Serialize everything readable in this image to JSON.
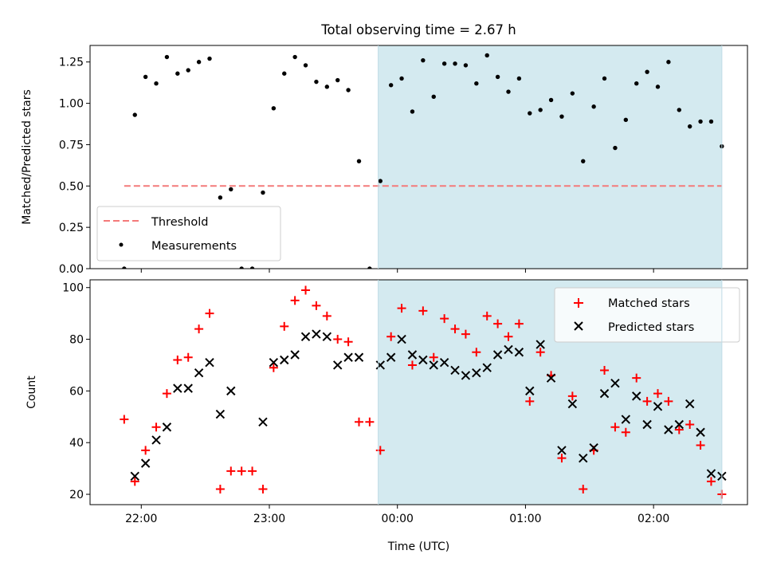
{
  "chart_data": [
    {
      "type": "scatter",
      "title": "Total observing time = 2.67 h",
      "ylabel": "Matched/Predicted stars",
      "xlabel": "",
      "ylim": [
        0,
        1.35
      ],
      "yticks": [
        "0.00",
        "0.25",
        "0.50",
        "0.75",
        "1.00",
        "1.25"
      ],
      "ytick_values": [
        0,
        0.25,
        0.5,
        0.75,
        1.0,
        1.25
      ],
      "xticks": [
        "22:00",
        "23:00",
        "00:00",
        "01:00",
        "02:00"
      ],
      "xtick_values": [
        "22:00",
        "23:00",
        "00:00",
        "01:00",
        "02:00"
      ],
      "xlim": [
        "21:36",
        "02:44"
      ],
      "shaded_span": [
        "23:51",
        "02:32"
      ],
      "shaded_color": "#d4eaf0",
      "legend": {
        "position": "lower-left",
        "entries": [
          "Threshold",
          "Measurements"
        ]
      },
      "threshold": {
        "name": "Threshold",
        "value": 0.5,
        "x_range": [
          "21:52",
          "02:32"
        ],
        "color": "#f47a7a",
        "style": "dashed"
      },
      "series": [
        {
          "name": "Measurements",
          "marker": "dot",
          "color": "#000000",
          "x": [
            "21:52",
            "21:57",
            "22:02",
            "22:07",
            "22:12",
            "22:17",
            "22:22",
            "22:27",
            "22:32",
            "22:37",
            "22:42",
            "22:47",
            "22:52",
            "22:57",
            "23:02",
            "23:07",
            "23:12",
            "23:17",
            "23:22",
            "23:27",
            "23:32",
            "23:37",
            "23:42",
            "23:47",
            "23:52",
            "23:57",
            "24:02",
            "24:07",
            "24:12",
            "24:17",
            "24:22",
            "24:27",
            "24:32",
            "24:37",
            "24:42",
            "24:47",
            "24:52",
            "24:57",
            "25:02",
            "25:07",
            "25:12",
            "25:17",
            "25:22",
            "25:27",
            "25:32",
            "25:37",
            "25:42",
            "25:47",
            "25:52",
            "25:57",
            "26:02",
            "26:07",
            "26:12",
            "26:17",
            "26:22",
            "26:27",
            "26:32"
          ],
          "y": [
            0.0,
            0.93,
            1.16,
            1.12,
            1.28,
            1.18,
            1.2,
            1.25,
            1.27,
            0.43,
            0.48,
            0.0,
            0.0,
            0.46,
            0.97,
            1.18,
            1.28,
            1.23,
            1.13,
            1.1,
            1.14,
            1.08,
            0.65,
            0.0,
            0.53,
            1.11,
            1.15,
            0.95,
            1.26,
            1.04,
            1.24,
            1.24,
            1.23,
            1.12,
            1.29,
            1.16,
            1.07,
            1.15,
            0.94,
            0.96,
            1.02,
            0.92,
            1.06,
            0.65,
            0.98,
            1.15,
            0.73,
            0.9,
            1.12,
            1.19,
            1.1,
            1.25,
            0.96,
            0.86,
            0.89,
            0.89,
            0.74
          ]
        }
      ]
    },
    {
      "type": "scatter",
      "title": "",
      "ylabel": "Count",
      "xlabel": "Time (UTC)",
      "ylim": [
        16,
        103
      ],
      "yticks": [
        "20",
        "40",
        "60",
        "80",
        "100"
      ],
      "ytick_values": [
        20,
        40,
        60,
        80,
        100
      ],
      "xticks": [
        "22:00",
        "23:00",
        "00:00",
        "01:00",
        "02:00"
      ],
      "xtick_values": [
        "22:00",
        "23:00",
        "00:00",
        "01:00",
        "02:00"
      ],
      "xlim": [
        "21:36",
        "02:44"
      ],
      "shaded_span": [
        "23:51",
        "02:32"
      ],
      "shaded_color": "#d4eaf0",
      "legend": {
        "position": "upper-right",
        "entries": [
          "Matched stars",
          "Predicted stars"
        ]
      },
      "series": [
        {
          "name": "Matched stars",
          "marker": "plus",
          "color": "#ff0000",
          "x": [
            "21:52",
            "21:57",
            "22:02",
            "22:07",
            "22:12",
            "22:17",
            "22:22",
            "22:27",
            "22:32",
            "22:37",
            "22:42",
            "22:47",
            "22:52",
            "22:57",
            "23:02",
            "23:07",
            "23:12",
            "23:17",
            "23:22",
            "23:27",
            "23:32",
            "23:37",
            "23:42",
            "23:47",
            "23:52",
            "23:57",
            "24:02",
            "24:07",
            "24:12",
            "24:17",
            "24:22",
            "24:27",
            "24:32",
            "24:37",
            "24:42",
            "24:47",
            "24:52",
            "24:57",
            "25:02",
            "25:07",
            "25:12",
            "25:17",
            "25:22",
            "25:27",
            "25:32",
            "25:37",
            "25:42",
            "25:47",
            "25:52",
            "25:57",
            "26:02",
            "26:07",
            "26:12",
            "26:17",
            "26:22",
            "26:27",
            "26:32"
          ],
          "y": [
            49,
            25,
            37,
            46,
            59,
            72,
            73,
            84,
            90,
            22,
            29,
            29,
            29,
            22,
            69,
            85,
            95,
            99,
            93,
            89,
            80,
            79,
            48,
            48,
            37,
            81,
            92,
            70,
            91,
            73,
            88,
            84,
            82,
            75,
            89,
            86,
            81,
            86,
            56,
            75,
            66,
            34,
            58,
            22,
            37,
            68,
            46,
            44,
            65,
            56,
            59,
            56,
            45,
            47,
            39,
            25,
            20
          ]
        },
        {
          "name": "Predicted stars",
          "marker": "x",
          "color": "#000000",
          "x": [
            "21:57",
            "22:02",
            "22:07",
            "22:12",
            "22:17",
            "22:22",
            "22:27",
            "22:32",
            "22:37",
            "22:42",
            "22:57",
            "23:02",
            "23:07",
            "23:12",
            "23:17",
            "23:22",
            "23:27",
            "23:32",
            "23:37",
            "23:42",
            "23:52",
            "23:57",
            "24:02",
            "24:07",
            "24:12",
            "24:17",
            "24:22",
            "24:27",
            "24:32",
            "24:37",
            "24:42",
            "24:47",
            "24:52",
            "24:57",
            "25:02",
            "25:07",
            "25:12",
            "25:17",
            "25:22",
            "25:27",
            "25:32",
            "25:37",
            "25:42",
            "25:47",
            "25:52",
            "25:57",
            "26:02",
            "26:07",
            "26:12",
            "26:17",
            "26:22",
            "26:27",
            "26:32"
          ],
          "y": [
            27,
            32,
            41,
            46,
            61,
            61,
            67,
            71,
            51,
            60,
            48,
            71,
            72,
            74,
            81,
            82,
            81,
            70,
            73,
            73,
            70,
            73,
            80,
            74,
            72,
            70,
            71,
            68,
            66,
            67,
            69,
            74,
            76,
            75,
            60,
            78,
            65,
            37,
            55,
            34,
            38,
            59,
            63,
            49,
            58,
            47,
            54,
            45,
            47,
            55,
            44,
            28,
            27
          ]
        }
      ]
    }
  ]
}
